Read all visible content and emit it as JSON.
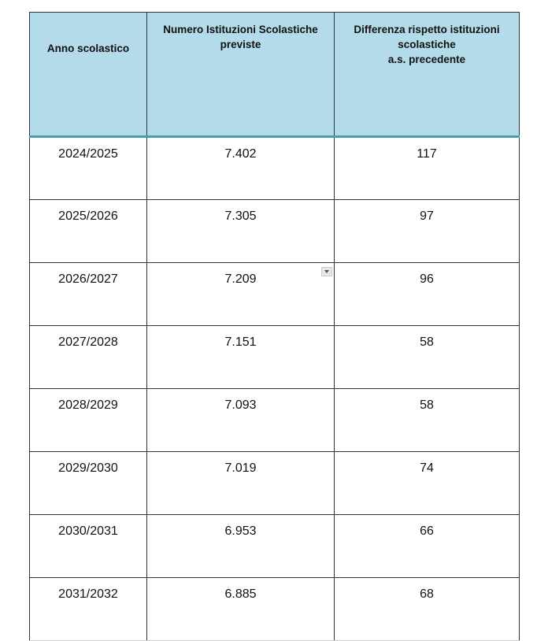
{
  "headers": [
    "Anno scolastico",
    "Numero Istituzioni Scolastiche previste",
    "Differenza rispetto istituzioni scolastiche a.s. precedente"
  ],
  "header_lines": {
    "col3": [
      "Differenza rispetto istituzioni",
      "scolastiche",
      "a.s. precedente"
    ]
  },
  "rows": [
    {
      "anno": "2024/2025",
      "numero": "7.402",
      "differenza": "117"
    },
    {
      "anno": "2025/2026",
      "numero": "7.305",
      "differenza": "97"
    },
    {
      "anno": "2026/2027",
      "numero": "7.209",
      "differenza": "96"
    },
    {
      "anno": "2027/2028",
      "numero": "7.151",
      "differenza": "58"
    },
    {
      "anno": "2028/2029",
      "numero": "7.093",
      "differenza": "58"
    },
    {
      "anno": "2029/2030",
      "numero": "7.019",
      "differenza": "74"
    },
    {
      "anno": "2030/2031",
      "numero": "6.953",
      "differenza": "66"
    },
    {
      "anno": "2031/2032",
      "numero": "6.885",
      "differenza": "68"
    }
  ],
  "colors": {
    "header_bg": "#b4dbe9",
    "header_rule": "#4a9fa8"
  },
  "icons": {
    "cell_dropdown": "dropdown-arrow-icon"
  }
}
